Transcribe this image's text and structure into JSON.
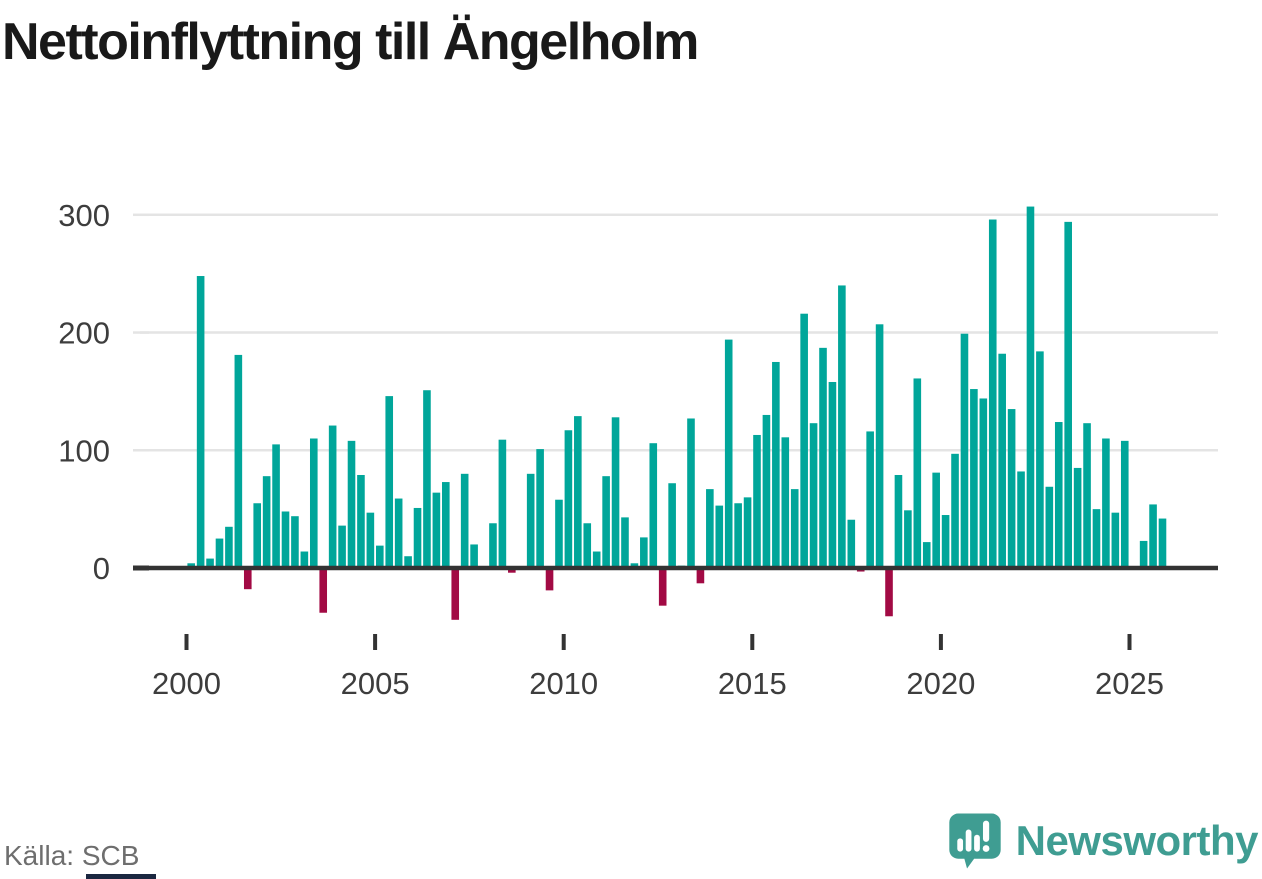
{
  "title": "Nettoinflyttning till Ängelholm",
  "source": "Källa: SCB",
  "brand": {
    "name": "Newsworthy",
    "icon": "newsworthy-speech-bubble-chart-icon"
  },
  "colors": {
    "bar_positive": "#00a69a",
    "bar_negative": "#a20a44",
    "axis_line": "#333333",
    "grid_line": "#e4e4e4",
    "tick_label": "#3d3d3d",
    "title_text": "#191919",
    "source_text": "#6e6e6e",
    "brand_teal": "#3f9d92",
    "bottom_strip": "#1b2740"
  },
  "chart_data": {
    "type": "bar",
    "title": "Nettoinflyttning till Ängelholm",
    "xlabel": "",
    "ylabel": "",
    "frequency": "quarterly",
    "start_year": 2000,
    "start_quarter": 1,
    "values": [
      4,
      248,
      8,
      25,
      35,
      181,
      -18,
      55,
      78,
      105,
      48,
      44,
      14,
      110,
      -38,
      121,
      36,
      108,
      79,
      47,
      19,
      146,
      59,
      10,
      51,
      151,
      64,
      73,
      -44,
      80,
      20,
      0,
      38,
      109,
      -4,
      0,
      80,
      101,
      -19,
      58,
      117,
      129,
      38,
      14,
      78,
      128,
      43,
      4,
      26,
      106,
      -32,
      72,
      2,
      127,
      -13,
      67,
      53,
      194,
      55,
      60,
      113,
      130,
      175,
      111,
      67,
      216,
      123,
      187,
      158,
      240,
      41,
      -3,
      116,
      207,
      -41,
      79,
      49,
      161,
      22,
      81,
      45,
      97,
      199,
      152,
      144,
      296,
      182,
      135,
      82,
      307,
      184,
      69,
      124,
      294,
      85,
      123,
      50,
      110,
      47,
      108,
      0,
      23,
      54,
      42
    ],
    "x_ticks": [
      2000,
      2005,
      2010,
      2015,
      2020,
      2025
    ],
    "x_tick_labels": [
      "2000",
      "2005",
      "2010",
      "2015",
      "2020",
      "2025"
    ],
    "y_ticks": [
      0,
      100,
      200,
      300
    ],
    "y_tick_labels": [
      "0",
      "100",
      "200",
      "300"
    ],
    "ylim": [
      -55,
      315
    ],
    "grid": "horizontal",
    "legend": "none"
  }
}
